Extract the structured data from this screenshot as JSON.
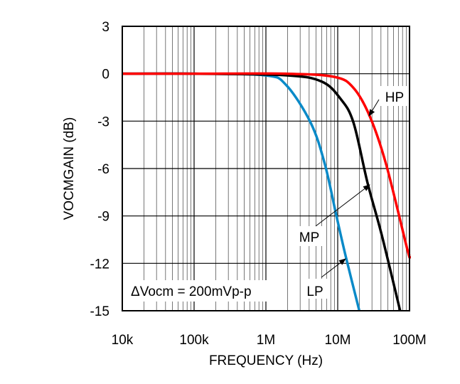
{
  "chart_data": {
    "type": "line",
    "xlabel": "FREQUENCY (Hz)",
    "ylabel": "VOCMGAIN (dB)",
    "xscale": "log",
    "xlim": [
      10000,
      100000000
    ],
    "ylim": [
      -15,
      3
    ],
    "x_ticks": [
      {
        "value": 10000,
        "label": "10k"
      },
      {
        "value": 100000,
        "label": "100k"
      },
      {
        "value": 1000000,
        "label": "1M"
      },
      {
        "value": 10000000,
        "label": "10M"
      },
      {
        "value": 100000000,
        "label": "100M"
      }
    ],
    "y_ticks": [
      {
        "value": 3,
        "label": "3"
      },
      {
        "value": 0,
        "label": "0"
      },
      {
        "value": -3,
        "label": "-3"
      },
      {
        "value": -6,
        "label": "-6"
      },
      {
        "value": -9,
        "label": "-9"
      },
      {
        "value": -12,
        "label": "-12"
      },
      {
        "value": -15,
        "label": "-15"
      }
    ],
    "grid": true,
    "annotation": "ΔVocm = 200mVp-p",
    "series": [
      {
        "name": "LP",
        "color": "#0a8ac8",
        "x": [
          10000,
          100000,
          950000,
          1900000,
          4200000,
          6600000,
          9600000,
          13000000,
          20000000
        ],
        "y": [
          0,
          0,
          -0.1,
          -0.7,
          -3.1,
          -5.7,
          -9,
          -11.6,
          -15
        ]
      },
      {
        "name": "MP",
        "color": "#000000",
        "x": [
          10000,
          100000,
          1900000,
          6000000,
          11000000,
          16600000,
          26000000,
          41000000,
          74000000
        ],
        "y": [
          0,
          0,
          -0.1,
          -0.5,
          -1.6,
          -3.1,
          -6.9,
          -10.2,
          -15
        ]
      },
      {
        "name": "HP",
        "color": "#ff0000",
        "x": [
          10000,
          100000,
          1900000,
          9000000,
          16600000,
          28000000,
          47000000,
          93000000,
          100000000
        ],
        "y": [
          0,
          0,
          0,
          -0.2,
          -0.9,
          -2.7,
          -5.7,
          -11.1,
          -11.5
        ]
      }
    ]
  }
}
